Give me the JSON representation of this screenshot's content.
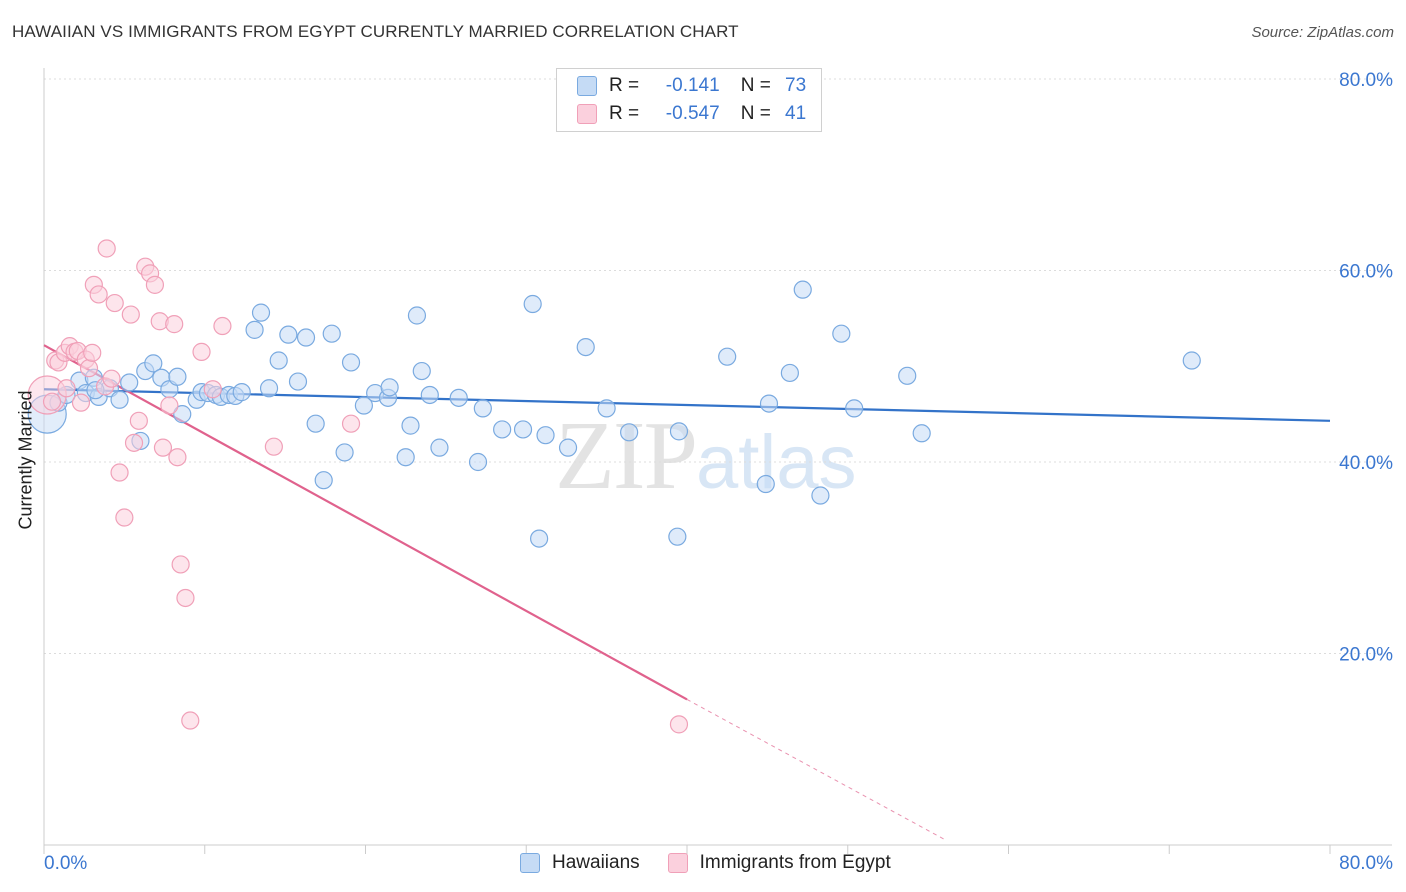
{
  "chart_data": {
    "type": "scatter",
    "title": "HAWAIIAN VS IMMIGRANTS FROM EGYPT CURRENTLY MARRIED CORRELATION CHART",
    "source": "Source: ZipAtlas.com",
    "ylabel": "Currently Married",
    "xlabel": "",
    "xlim": [
      0,
      80
    ],
    "ylim": [
      0,
      80
    ],
    "x_tick_labels": [
      "0.0%",
      "80.0%"
    ],
    "y_tick_labels": [
      "20.0%",
      "40.0%",
      "60.0%",
      "80.0%"
    ],
    "watermark": {
      "zip": "ZIP",
      "atlas": "atlas"
    },
    "legend": {
      "rows": [
        {
          "r_label": "R =",
          "r_value": "-0.141",
          "n_label": "N =",
          "n_value": "73"
        },
        {
          "r_label": "R =",
          "r_value": "-0.547",
          "n_label": "N =",
          "n_value": "41"
        }
      ]
    },
    "series": [
      {
        "name": "Hawaiians",
        "color": "#7aaae0",
        "fill": "#c5dbf5",
        "line_color": "#3373c9",
        "trend": {
          "x0": 0,
          "y0": 47.6,
          "x1": 80,
          "y1": 44.3
        },
        "points": [
          [
            0.2,
            45.0
          ],
          [
            0.9,
            46.2
          ],
          [
            1.4,
            47.0
          ],
          [
            2.2,
            48.5
          ],
          [
            2.6,
            47.2
          ],
          [
            3.1,
            48.8
          ],
          [
            3.4,
            46.8
          ],
          [
            4.1,
            47.7
          ],
          [
            4.7,
            46.5
          ],
          [
            5.3,
            48.3
          ],
          [
            6.0,
            42.2
          ],
          [
            6.3,
            49.5
          ],
          [
            6.8,
            50.3
          ],
          [
            7.3,
            48.8
          ],
          [
            7.8,
            47.6
          ],
          [
            8.3,
            48.9
          ],
          [
            8.6,
            45.0
          ],
          [
            9.5,
            46.5
          ],
          [
            9.8,
            47.3
          ],
          [
            10.2,
            47.2
          ],
          [
            10.7,
            47.0
          ],
          [
            11.0,
            46.8
          ],
          [
            11.5,
            47.0
          ],
          [
            11.9,
            46.9
          ],
          [
            12.3,
            47.3
          ],
          [
            13.1,
            53.8
          ],
          [
            13.5,
            55.6
          ],
          [
            14.0,
            47.7
          ],
          [
            14.6,
            50.6
          ],
          [
            15.2,
            53.3
          ],
          [
            15.8,
            48.4
          ],
          [
            16.3,
            53.0
          ],
          [
            16.9,
            44.0
          ],
          [
            17.4,
            38.1
          ],
          [
            17.9,
            53.4
          ],
          [
            18.7,
            41.0
          ],
          [
            19.1,
            50.4
          ],
          [
            19.9,
            45.9
          ],
          [
            20.6,
            47.2
          ],
          [
            21.4,
            46.7
          ],
          [
            21.5,
            47.8
          ],
          [
            22.5,
            40.5
          ],
          [
            22.8,
            43.8
          ],
          [
            23.2,
            55.3
          ],
          [
            23.5,
            49.5
          ],
          [
            24.0,
            47.0
          ],
          [
            24.6,
            41.5
          ],
          [
            25.8,
            46.7
          ],
          [
            27.0,
            40.0
          ],
          [
            27.3,
            45.6
          ],
          [
            28.5,
            43.4
          ],
          [
            29.8,
            43.4
          ],
          [
            30.4,
            56.5
          ],
          [
            30.8,
            32.0
          ],
          [
            31.2,
            42.8
          ],
          [
            32.6,
            41.5
          ],
          [
            33.7,
            52.0
          ],
          [
            35.0,
            45.6
          ],
          [
            36.4,
            43.1
          ],
          [
            39.4,
            32.2
          ],
          [
            39.5,
            43.2
          ],
          [
            42.5,
            51.0
          ],
          [
            44.9,
            37.7
          ],
          [
            45.1,
            46.1
          ],
          [
            46.4,
            49.3
          ],
          [
            47.2,
            58.0
          ],
          [
            48.3,
            36.5
          ],
          [
            49.6,
            53.4
          ],
          [
            50.4,
            45.6
          ],
          [
            53.7,
            49.0
          ],
          [
            54.6,
            43.0
          ],
          [
            71.4,
            50.6
          ],
          [
            3.2,
            47.5
          ]
        ]
      },
      {
        "name": "Immigrants from Egypt",
        "color": "#f0a0b8",
        "fill": "#fbd0dd",
        "line_color": "#e0628d",
        "trend": {
          "x0": 0,
          "y0": 52.2,
          "x1": 40,
          "y1": 15.2,
          "x_dash_end": 56,
          "y_dash_end": 0.6
        },
        "points": [
          [
            0.2,
            47.0
          ],
          [
            0.5,
            46.3
          ],
          [
            0.7,
            50.6
          ],
          [
            0.9,
            50.4
          ],
          [
            1.3,
            51.4
          ],
          [
            1.4,
            47.7
          ],
          [
            1.6,
            52.1
          ],
          [
            1.9,
            51.5
          ],
          [
            2.1,
            51.6
          ],
          [
            2.3,
            46.2
          ],
          [
            2.6,
            50.7
          ],
          [
            2.8,
            49.8
          ],
          [
            3.0,
            51.4
          ],
          [
            3.1,
            58.5
          ],
          [
            3.4,
            57.5
          ],
          [
            3.8,
            47.9
          ],
          [
            3.9,
            62.3
          ],
          [
            4.2,
            48.7
          ],
          [
            4.4,
            56.6
          ],
          [
            4.7,
            38.9
          ],
          [
            5.0,
            34.2
          ],
          [
            5.4,
            55.4
          ],
          [
            5.6,
            42.0
          ],
          [
            5.9,
            44.3
          ],
          [
            6.3,
            60.4
          ],
          [
            6.6,
            59.7
          ],
          [
            6.9,
            58.5
          ],
          [
            7.2,
            54.7
          ],
          [
            7.4,
            41.5
          ],
          [
            7.8,
            45.9
          ],
          [
            8.1,
            54.4
          ],
          [
            8.3,
            40.5
          ],
          [
            8.5,
            29.3
          ],
          [
            8.8,
            25.8
          ],
          [
            9.1,
            13.0
          ],
          [
            9.8,
            51.5
          ],
          [
            10.5,
            47.6
          ],
          [
            11.1,
            54.2
          ],
          [
            14.3,
            41.6
          ],
          [
            19.1,
            44.0
          ],
          [
            39.5,
            12.6
          ]
        ]
      }
    ]
  }
}
